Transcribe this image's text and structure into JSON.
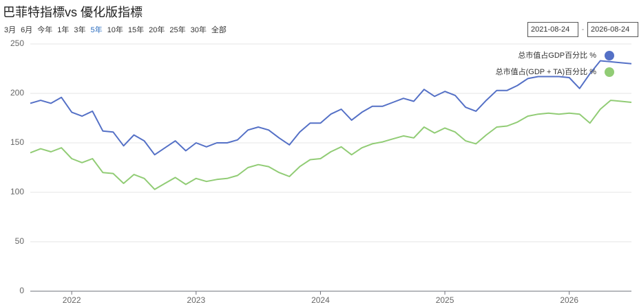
{
  "header": {
    "title": "巴菲特指標vs 優化版指標",
    "ranges": [
      "3月",
      "6月",
      "今年",
      "1年",
      "3年",
      "5年",
      "10年",
      "15年",
      "20年",
      "25年",
      "30年",
      "全部"
    ],
    "active_range": 5,
    "date_from": "2021-08-24",
    "date_separator": "-",
    "date_to": "2026-08-24"
  },
  "chart_data": {
    "type": "line",
    "x": [
      2021.667,
      2021.75,
      2021.833,
      2021.917,
      2022.0,
      2022.083,
      2022.167,
      2022.25,
      2022.333,
      2022.417,
      2022.5,
      2022.583,
      2022.667,
      2022.75,
      2022.833,
      2022.917,
      2023.0,
      2023.083,
      2023.167,
      2023.25,
      2023.333,
      2023.417,
      2023.5,
      2023.583,
      2023.667,
      2023.75,
      2023.833,
      2023.917,
      2024.0,
      2024.083,
      2024.167,
      2024.25,
      2024.333,
      2024.417,
      2024.5,
      2024.583,
      2024.667,
      2024.75,
      2024.833,
      2024.917,
      2025.0,
      2025.083,
      2025.167,
      2025.25,
      2025.333,
      2025.417,
      2025.5,
      2025.583,
      2025.667,
      2025.75,
      2025.833,
      2025.917,
      2026.0,
      2026.083,
      2026.167,
      2026.25,
      2026.333,
      2026.417,
      2026.5
    ],
    "series": [
      {
        "name": "总市值占GDP百分比 %",
        "color": "#5470c6",
        "values": [
          190,
          193,
          190,
          196,
          181,
          177,
          182,
          162,
          161,
          147,
          158,
          152,
          138,
          145,
          152,
          142,
          150,
          146,
          150,
          150,
          153,
          163,
          166,
          163,
          155,
          148,
          161,
          170,
          170,
          179,
          184,
          173,
          181,
          187,
          187,
          191,
          195,
          192,
          204,
          197,
          202,
          198,
          186,
          182,
          193,
          203,
          203,
          208,
          215,
          217,
          217,
          217,
          216,
          205,
          220,
          233,
          232,
          231,
          230
        ]
      },
      {
        "name": "总市值占(GDP + TA)百分比 %",
        "color": "#91cc75",
        "values": [
          140,
          144,
          141,
          145,
          134,
          130,
          134,
          120,
          119,
          109,
          118,
          114,
          103,
          109,
          115,
          108,
          114,
          111,
          113,
          114,
          117,
          125,
          128,
          126,
          120,
          116,
          126,
          133,
          134,
          141,
          146,
          138,
          145,
          149,
          151,
          154,
          157,
          155,
          166,
          160,
          165,
          161,
          152,
          149,
          158,
          166,
          167,
          171,
          177,
          179,
          180,
          179,
          180,
          179,
          170,
          184,
          193,
          192,
          191
        ]
      }
    ],
    "xlim": [
      2021.667,
      2026.5
    ],
    "xticks": [
      2022,
      2023,
      2024,
      2025,
      2026
    ],
    "ylim": [
      0,
      250
    ],
    "yticks": [
      0,
      50,
      100,
      150,
      200,
      250
    ],
    "grid": true,
    "legend": "top-right"
  }
}
